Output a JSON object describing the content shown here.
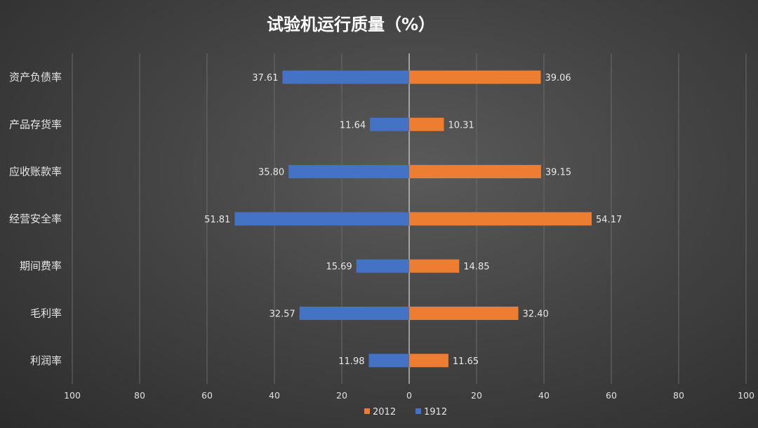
{
  "chart_data": {
    "type": "bar",
    "orientation": "horizontal-butterfly",
    "title": "试验机运行质量（%）",
    "categories": [
      "资产负债率",
      "产品存货率",
      "应收账款率",
      "经营安全率",
      "期间费率",
      "毛利率",
      "利润率"
    ],
    "series": [
      {
        "name": "1912",
        "side": "left",
        "color": "#4472c4",
        "values": [
          37.61,
          11.64,
          35.8,
          51.81,
          15.69,
          32.57,
          11.98
        ],
        "labels": [
          "37.61",
          "11.64",
          "35.80",
          "51.81",
          "15.69",
          "32.57",
          "11.98"
        ]
      },
      {
        "name": "2012",
        "side": "right",
        "color": "#ed7d31",
        "values": [
          39.06,
          10.31,
          39.15,
          54.17,
          14.85,
          32.4,
          11.65
        ],
        "labels": [
          "39.06",
          "10.31",
          "39.15",
          "54.17",
          "14.85",
          "32.40",
          "11.65"
        ]
      }
    ],
    "x_ticks": [
      "100",
      "80",
      "60",
      "40",
      "20",
      "0",
      "20",
      "40",
      "60",
      "80",
      "100"
    ],
    "xlim": [
      -100,
      100
    ],
    "grid": true,
    "legend": {
      "placement": "bottom",
      "order": [
        "2012",
        "1912"
      ]
    }
  }
}
